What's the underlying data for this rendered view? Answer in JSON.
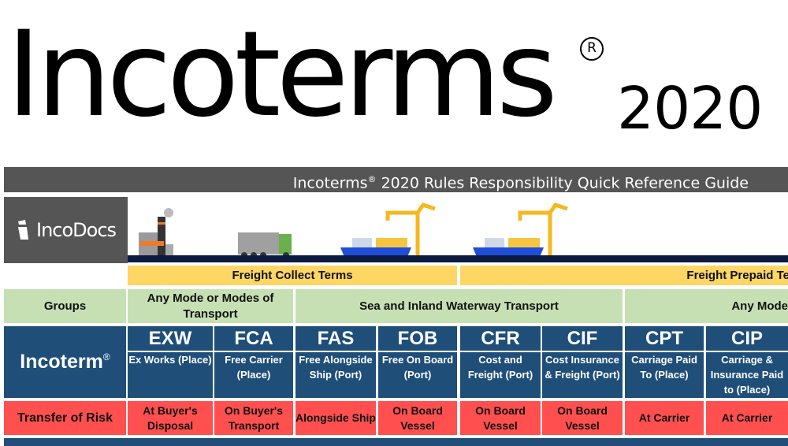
{
  "header": {
    "brand": "Incoterms",
    "registered": "R",
    "year": "2020"
  },
  "guide_title": {
    "text": "Incoterms",
    "reg": "®",
    "rest": "2020 Rules Responsibility Quick Reference Guide"
  },
  "logo": {
    "text": "IncoDocs"
  },
  "illustrations": [
    "factory-icon",
    "truck-icon",
    "ship-crane-icon",
    "ship-crane-icon"
  ],
  "terms_groups": {
    "collect": "Freight Collect Terms",
    "prepaid": "Freight Prepaid Te"
  },
  "groups_label": "Groups",
  "modes": [
    "Any Mode or Modes of Transport",
    "Sea and Inland Waterway Transport",
    "Any Mode"
  ],
  "incoterm_label": "Incoterm",
  "incoterm_reg": "®",
  "risk_label": "Transfer of Risk",
  "terms": [
    {
      "code": "EXW",
      "desc": "Ex Works (Place)",
      "risk": "At Buyer's Disposal"
    },
    {
      "code": "FCA",
      "desc": "Free Carrier (Place)",
      "risk": "On Buyer's Transport"
    },
    {
      "code": "FAS",
      "desc": "Free Alongside Ship (Port)",
      "risk": "Alongside Ship"
    },
    {
      "code": "FOB",
      "desc": "Free On Board (Port)",
      "risk": "On Board Vessel"
    },
    {
      "code": "CFR",
      "desc": "Cost and Freight (Port)",
      "risk": "On Board Vessel"
    },
    {
      "code": "CIF",
      "desc": "Cost Insurance & Freight (Port)",
      "risk": "On Board Vessel"
    },
    {
      "code": "CPT",
      "desc": "Carriage Paid To (Place)",
      "risk": "At Carrier"
    },
    {
      "code": "CIP",
      "desc": "Carriage & Insurance Paid to (Place)",
      "risk": "At Carrier"
    }
  ],
  "colors": {
    "title_bar": "#555555",
    "yellow": "#fdd663",
    "green": "#c6e0b4",
    "navy": "#1f4e79",
    "risk_red": "#ff4f4f"
  }
}
